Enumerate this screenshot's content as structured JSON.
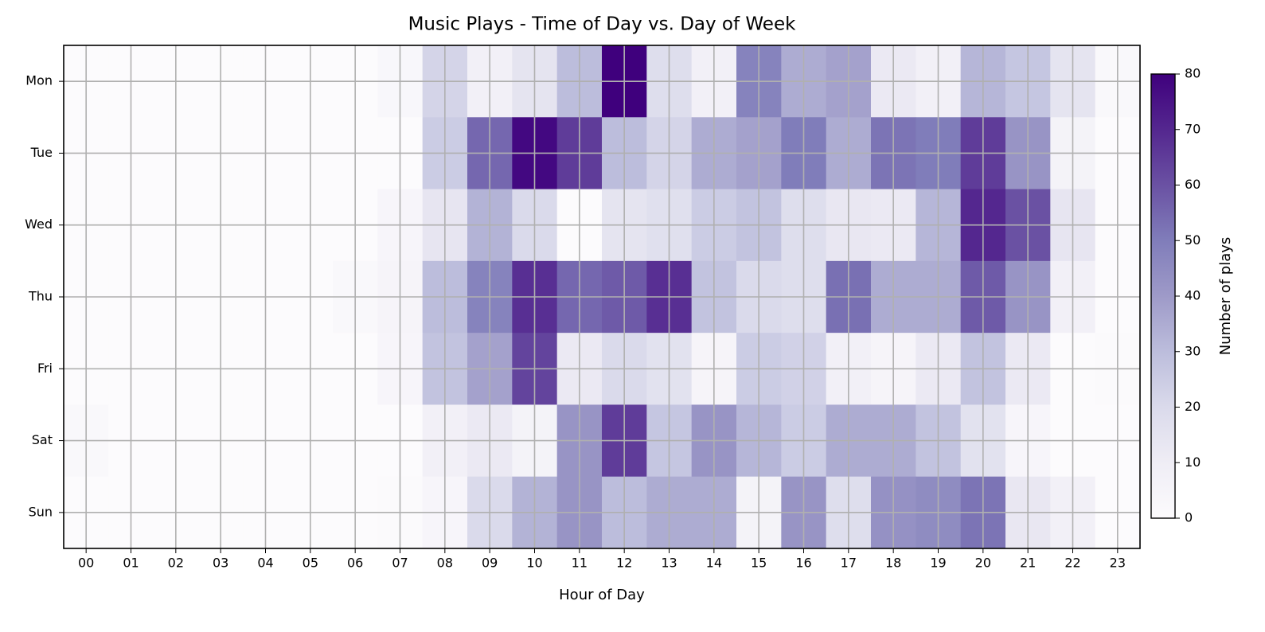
{
  "chart_data": {
    "type": "heatmap",
    "title": "Music Plays - Time of Day vs. Day of Week",
    "x_label": "Hour of Day",
    "colorbar_label": "Number of plays",
    "x_categories": [
      "00",
      "01",
      "02",
      "03",
      "04",
      "05",
      "06",
      "07",
      "08",
      "09",
      "10",
      "11",
      "12",
      "13",
      "14",
      "15",
      "16",
      "17",
      "18",
      "19",
      "20",
      "21",
      "22",
      "23"
    ],
    "y_categories": [
      "Mon",
      "Tue",
      "Wed",
      "Thu",
      "Fri",
      "Sat",
      "Sun"
    ],
    "values": [
      [
        0,
        0,
        0,
        0,
        0,
        0,
        0,
        3,
        22,
        8,
        15,
        30,
        80,
        18,
        8,
        48,
        35,
        38,
        12,
        8,
        32,
        27,
        15,
        2
      ],
      [
        0,
        0,
        0,
        0,
        0,
        0,
        0,
        0,
        25,
        55,
        78,
        65,
        30,
        22,
        35,
        38,
        50,
        35,
        52,
        50,
        65,
        42,
        6,
        0
      ],
      [
        0,
        0,
        0,
        0,
        0,
        0,
        0,
        4,
        14,
        33,
        20,
        0,
        15,
        17,
        25,
        28,
        18,
        13,
        12,
        32,
        70,
        60,
        14,
        0
      ],
      [
        0,
        0,
        0,
        0,
        0,
        0,
        2,
        5,
        30,
        48,
        68,
        55,
        58,
        68,
        28,
        20,
        18,
        53,
        35,
        35,
        58,
        42,
        8,
        0
      ],
      [
        0,
        0,
        0,
        0,
        0,
        0,
        0,
        4,
        28,
        38,
        63,
        12,
        20,
        16,
        5,
        25,
        23,
        8,
        5,
        12,
        28,
        12,
        0,
        1
      ],
      [
        2,
        0,
        0,
        0,
        0,
        0,
        0,
        0,
        8,
        12,
        6,
        42,
        65,
        27,
        42,
        32,
        25,
        35,
        35,
        28,
        16,
        4,
        0,
        0
      ],
      [
        0,
        0,
        0,
        0,
        0,
        0,
        0,
        1,
        4,
        20,
        33,
        42,
        30,
        35,
        35,
        6,
        42,
        18,
        43,
        45,
        52,
        13,
        8,
        0
      ]
    ],
    "colormap": [
      "#fcfbfd",
      "#efedf5",
      "#dadaeb",
      "#bcbddc",
      "#9e9ac8",
      "#807dba",
      "#6a51a3",
      "#54278f",
      "#3f007d"
    ],
    "clim": [
      0,
      80
    ],
    "cticks": [
      0,
      10,
      20,
      30,
      40,
      50,
      60,
      70,
      80
    ],
    "grid": true
  }
}
